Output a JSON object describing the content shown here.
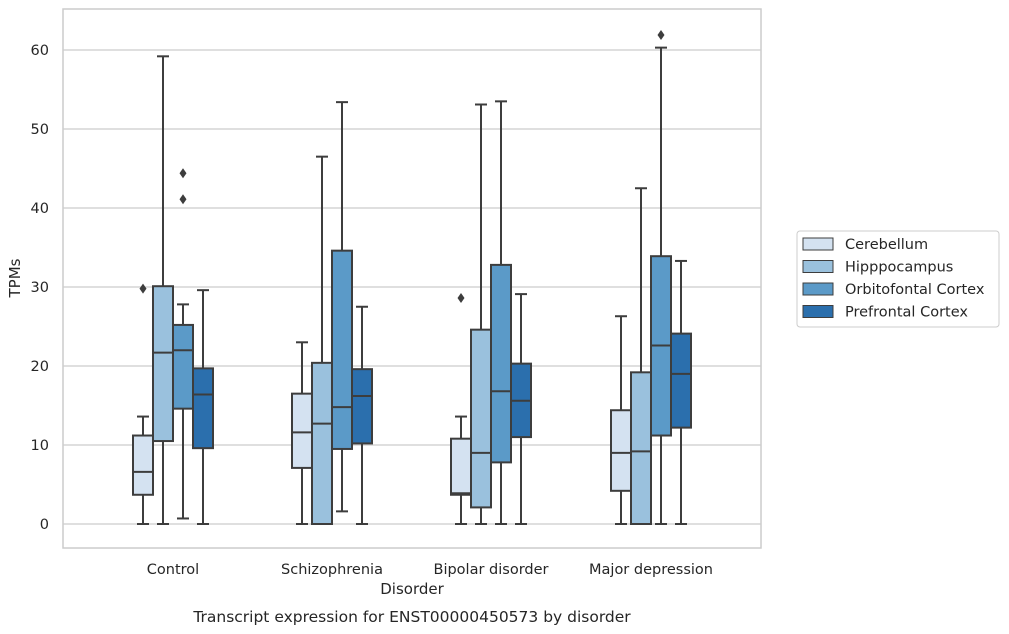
{
  "chart_data": {
    "type": "box",
    "caption": "Transcript expression for ENST00000450573 by disorder",
    "xlabel": "Disorder",
    "ylabel": "TPMs",
    "ylim": [
      -3,
      65
    ],
    "yticks": [
      0,
      10,
      20,
      30,
      40,
      50,
      60
    ],
    "grid": "horizontal",
    "legend_position": "right",
    "categories": [
      "Control",
      "Schizophrenia",
      "Bipolar disorder",
      "Major depression"
    ],
    "series": [
      {
        "name": "Cerebellum",
        "color": "#d4e2f1",
        "boxes": [
          {
            "whisker_low": 0,
            "q1": 3.7,
            "median": 6.6,
            "q3": 11.2,
            "whisker_high": 13.6,
            "outliers": [
              29.8
            ]
          },
          {
            "whisker_low": 0,
            "q1": 7.1,
            "median": 11.6,
            "q3": 16.5,
            "whisker_high": 23.0,
            "outliers": []
          },
          {
            "whisker_low": 0,
            "q1": 3.7,
            "median": 3.9,
            "q3": 10.8,
            "whisker_high": 13.6,
            "outliers": [
              28.6
            ]
          },
          {
            "whisker_low": 0,
            "q1": 4.2,
            "median": 9.0,
            "q3": 14.4,
            "whisker_high": 26.3,
            "outliers": []
          }
        ]
      },
      {
        "name": "Hipppocampus",
        "color": "#9ac1dd",
        "boxes": [
          {
            "whisker_low": 0,
            "q1": 10.5,
            "median": 21.7,
            "q3": 30.1,
            "whisker_high": 59.2,
            "outliers": []
          },
          {
            "whisker_low": 0,
            "q1": 0,
            "median": 12.7,
            "q3": 20.4,
            "whisker_high": 46.5,
            "outliers": []
          },
          {
            "whisker_low": 0,
            "q1": 2.1,
            "median": 9.0,
            "q3": 24.6,
            "whisker_high": 53.1,
            "outliers": []
          },
          {
            "whisker_low": 0,
            "q1": 0,
            "median": 9.2,
            "q3": 19.2,
            "whisker_high": 42.5,
            "outliers": []
          }
        ]
      },
      {
        "name": "Orbitofontal Cortex",
        "color": "#5b9ac8",
        "boxes": [
          {
            "whisker_low": 0.7,
            "q1": 14.6,
            "median": 22.0,
            "q3": 25.2,
            "whisker_high": 27.8,
            "outliers": [
              41.1,
              44.4
            ]
          },
          {
            "whisker_low": 1.6,
            "q1": 9.5,
            "median": 14.8,
            "q3": 34.6,
            "whisker_high": 53.4,
            "outliers": []
          },
          {
            "whisker_low": 0,
            "q1": 7.8,
            "median": 16.8,
            "q3": 32.8,
            "whisker_high": 53.5,
            "outliers": []
          },
          {
            "whisker_low": 0,
            "q1": 11.2,
            "median": 22.6,
            "q3": 33.9,
            "whisker_high": 60.3,
            "outliers": [
              61.9
            ]
          }
        ]
      },
      {
        "name": "Prefrontal Cortex",
        "color": "#2b6fad",
        "boxes": [
          {
            "whisker_low": 0,
            "q1": 9.6,
            "median": 16.4,
            "q3": 19.7,
            "whisker_high": 29.6,
            "outliers": []
          },
          {
            "whisker_low": 0,
            "q1": 10.2,
            "median": 16.2,
            "q3": 19.6,
            "whisker_high": 27.5,
            "outliers": []
          },
          {
            "whisker_low": 0,
            "q1": 11.0,
            "median": 15.6,
            "q3": 20.3,
            "whisker_high": 29.1,
            "outliers": []
          },
          {
            "whisker_low": 0,
            "q1": 12.2,
            "median": 19.0,
            "q3": 24.1,
            "whisker_high": 33.3,
            "outliers": []
          }
        ]
      }
    ]
  }
}
